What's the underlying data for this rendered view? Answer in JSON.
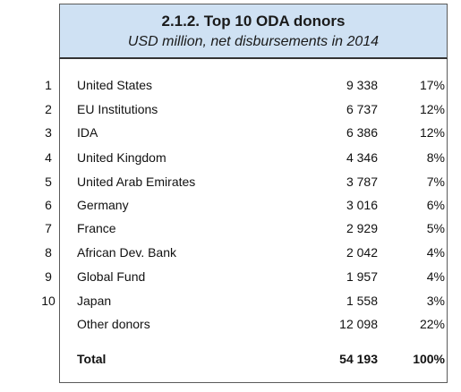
{
  "table": {
    "title": "2.1.2. Top 10 ODA donors",
    "subtitle": "USD million, net disbursements in 2014",
    "rows": [
      {
        "rank": "1",
        "name": "United States",
        "value": "9 338",
        "percent": "17%"
      },
      {
        "rank": "2",
        "name": "EU Institutions",
        "value": "6 737",
        "percent": "12%"
      },
      {
        "rank": "3",
        "name": "IDA",
        "value": "6 386",
        "percent": "12%"
      },
      {
        "rank": "4",
        "name": "United Kingdom",
        "value": "4 346",
        "percent": "8%"
      },
      {
        "rank": "5",
        "name": "United Arab Emirates",
        "value": "3 787",
        "percent": "7%"
      },
      {
        "rank": "6",
        "name": "Germany",
        "value": "3 016",
        "percent": "6%"
      },
      {
        "rank": "7",
        "name": "France",
        "value": "2 929",
        "percent": "5%"
      },
      {
        "rank": "8",
        "name": "African Dev. Bank",
        "value": "2 042",
        "percent": "4%"
      },
      {
        "rank": "9",
        "name": "Global Fund",
        "value": "1 957",
        "percent": "4%"
      },
      {
        "rank": "10",
        "name": "Japan",
        "value": "1 558",
        "percent": "3%"
      },
      {
        "rank": "",
        "name": "Other donors",
        "value": "12 098",
        "percent": "22%"
      }
    ],
    "total": {
      "name": "Total",
      "value": "54 193",
      "percent": "100%"
    }
  },
  "colors": {
    "header_background": "#cfe1f3",
    "border": "#5a5a5a"
  }
}
